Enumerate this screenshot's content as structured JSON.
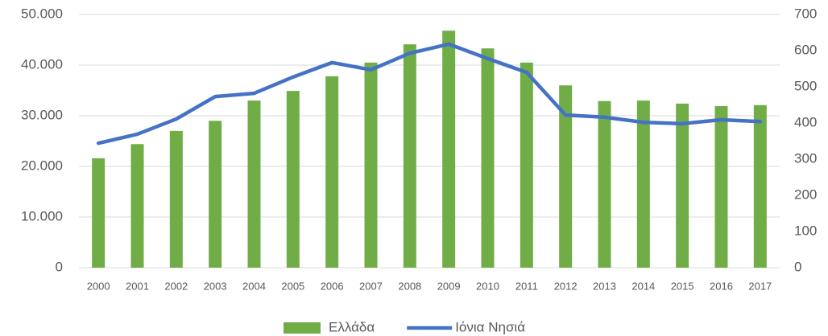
{
  "chart_data": {
    "type": "bar",
    "categories": [
      "2000",
      "2001",
      "2002",
      "2003",
      "2004",
      "2005",
      "2006",
      "2007",
      "2008",
      "2009",
      "2010",
      "2011",
      "2012",
      "2013",
      "2014",
      "2015",
      "2016",
      "2017"
    ],
    "series": [
      {
        "name": "Ελλάδα",
        "type": "bar",
        "color": "#70ad47",
        "values": [
          21600,
          24400,
          27000,
          29000,
          33000,
          34900,
          37800,
          40500,
          44100,
          46800,
          43300,
          40500,
          36000,
          32900,
          33000,
          32400,
          31900,
          32100
        ]
      },
      {
        "name": "Ιόνια Νησιά",
        "type": "line",
        "axis": "y2",
        "color": "#4472c4",
        "values": [
          344,
          369,
          411,
          473,
          482,
          527,
          567,
          547,
          593,
          618,
          578,
          540,
          422,
          416,
          402,
          398,
          409,
          404
        ]
      }
    ],
    "ylim": [
      0,
      50000
    ],
    "yticks": [
      0,
      {
        "value": 10000,
        "label": "10.000"
      },
      {
        "value": 20000,
        "label": "20.000"
      },
      {
        "value": 30000,
        "label": "30.000"
      },
      {
        "value": 40000,
        "label": "40.000"
      },
      {
        "value": 50000,
        "label": "50.000"
      }
    ],
    "y2lim": [
      0,
      700
    ],
    "y2ticks": [
      0,
      100,
      200,
      300,
      400,
      500,
      600,
      700
    ],
    "grid": true,
    "legend": "bottom"
  }
}
